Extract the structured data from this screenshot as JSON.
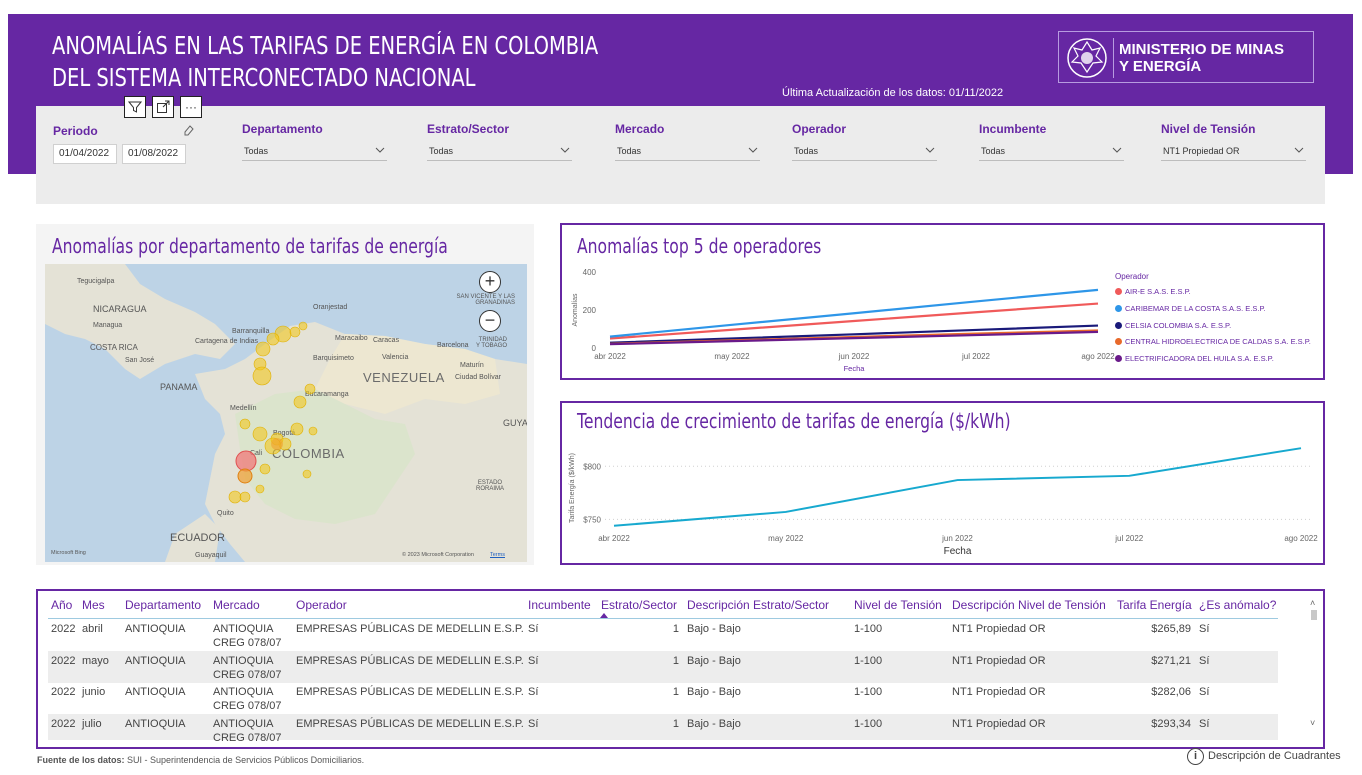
{
  "header": {
    "title_line1": "ANOMALÍAS EN LAS TARIFAS DE ENERGÍA EN COLOMBIA",
    "title_line2": "DEL SISTEMA INTERCONECTADO NACIONAL",
    "last_update": "Última Actualización de los datos: 01/11/2022",
    "logo_line1": "MINISTERIO DE MINAS",
    "logo_line2": "Y ENERGÍA",
    "bg_color": "#6627a3"
  },
  "visual_buttons": {
    "filter": "⛉",
    "focus": "⤢",
    "more": "···"
  },
  "filters": {
    "periodo": {
      "label": "Periodo",
      "start": "01/04/2022",
      "end": "01/08/2022"
    },
    "departamento": {
      "label": "Departamento",
      "value": "Todas"
    },
    "estrato": {
      "label": "Estrato/Sector",
      "value": "Todas"
    },
    "mercado": {
      "label": "Mercado",
      "value": "Todas"
    },
    "operador": {
      "label": "Operador",
      "value": "Todas"
    },
    "incumbente": {
      "label": "Incumbente",
      "value": "Todas"
    },
    "nivel": {
      "label": "Nivel de Tensión",
      "value": "NT1 Propiedad OR"
    }
  },
  "map_panel": {
    "title": "Anomalías por departamento de tarifas de energía",
    "countries": [
      "VENEZUELA",
      "COLOMBIA",
      "PANAMA",
      "NICARAGUA",
      "COSTA RICA",
      "ECUADOR",
      "GUYA"
    ],
    "cities": [
      "Tegucigalpa",
      "Managua",
      "San José",
      "Barranquilla",
      "Cartagena de Indias",
      "Maracaibo",
      "Caracas",
      "Barquisimeto",
      "Valencia",
      "Barcelona",
      "Maturín",
      "Ciudad Bolívar",
      "Bucaramanga",
      "Medellín",
      "Bogotá",
      "Cali",
      "Quito",
      "Guayaquil",
      "Oranjestad",
      "SAN VICENTE Y LAS GRANADINAS",
      "TRINIDAD Y TOBAGO",
      "ESTADO RORAIMA"
    ],
    "attribution_left": "Microsoft Bing",
    "attribution_right": "© 2023 Microsoft Corporation",
    "terms": "Terms",
    "zoom_in": "+",
    "zoom_out": "−"
  },
  "operators_panel": {
    "title": "Anomalías top 5 de operadores",
    "legend_title": "Operador"
  },
  "trend_panel": {
    "title": "Tendencia de crecimiento de tarifas de energía ($/kWh)"
  },
  "chart_data": [
    {
      "type": "line",
      "title": "Anomalías top 5 de operadores",
      "xlabel": "Fecha",
      "ylabel": "Anomalías",
      "x": [
        "abr 2022",
        "may 2022",
        "jun 2022",
        "jul 2022",
        "ago 2022"
      ],
      "yticks": [
        "400",
        "200",
        "0"
      ],
      "ylim": [
        0,
        400
      ],
      "grid": false,
      "legend_position": "right",
      "series": [
        {
          "name": "AIR-E S.A.S. E.S.P.",
          "color": "#f05a5a",
          "values": [
            50,
            96,
            142,
            188,
            234
          ]
        },
        {
          "name": "CARIBEMAR DE LA COSTA S.A.S. E.S.P.",
          "color": "#2e96e8",
          "values": [
            60,
            122,
            183,
            245,
            306
          ]
        },
        {
          "name": "CELSIA COLOMBIA S.A. E.S.P.",
          "color": "#1a1a7a",
          "values": [
            28,
            50,
            72,
            95,
            118
          ]
        },
        {
          "name": "CENTRAL HIDROELECTRICA DE CALDAS S.A. E.S.P.",
          "color": "#e8692a",
          "values": [
            22,
            40,
            58,
            76,
            92
          ]
        },
        {
          "name": "ELECTRIFICADORA DEL HUILA S.A. E.S.P.",
          "color": "#6a1a8a",
          "values": [
            20,
            36,
            52,
            68,
            85
          ]
        }
      ]
    },
    {
      "type": "line",
      "title": "Tendencia de crecimiento de tarifas de energía ($/kWh)",
      "xlabel": "Fecha",
      "ylabel": "Tarifa Energía ($/kWh)",
      "x": [
        "abr 2022",
        "may 2022",
        "jun 2022",
        "jul 2022",
        "ago 2022"
      ],
      "yticks": [
        "$800",
        "$750"
      ],
      "ytick_values": [
        800,
        750
      ],
      "ylim": [
        740,
        820
      ],
      "grid": true,
      "series": [
        {
          "name": "",
          "color": "#17a9cf",
          "values": [
            744,
            757,
            787,
            791,
            817
          ]
        }
      ]
    }
  ],
  "table": {
    "headers": [
      "Año",
      "Mes",
      "Departamento",
      "Mercado",
      "Operador",
      "Incumbente",
      "Estrato/Sector",
      "Descripción Estrato/Sector",
      "Nivel de Tensión",
      "Descripción Nivel de Tensión",
      "Tarifa Energía",
      "¿Es anómalo?"
    ],
    "rows": [
      {
        "anio": "2022",
        "mes": "abril",
        "depto": "ANTIOQUIA",
        "mercado1": "ANTIOQUIA",
        "mercado2": "CREG 078/07",
        "operador": "EMPRESAS PÚBLICAS DE MEDELLIN E.S.P.",
        "incumbente": "Sí",
        "estrato": "1",
        "desc_estrato": "Bajo - Bajo",
        "nivel": "1-100",
        "desc_nivel": "NT1 Propiedad OR",
        "tarifa": "$265,89",
        "anomalo": "Sí"
      },
      {
        "anio": "2022",
        "mes": "mayo",
        "depto": "ANTIOQUIA",
        "mercado1": "ANTIOQUIA",
        "mercado2": "CREG 078/07",
        "operador": "EMPRESAS PÚBLICAS DE MEDELLIN E.S.P.",
        "incumbente": "Sí",
        "estrato": "1",
        "desc_estrato": "Bajo - Bajo",
        "nivel": "1-100",
        "desc_nivel": "NT1 Propiedad OR",
        "tarifa": "$271,21",
        "anomalo": "Sí"
      },
      {
        "anio": "2022",
        "mes": "junio",
        "depto": "ANTIOQUIA",
        "mercado1": "ANTIOQUIA",
        "mercado2": "CREG 078/07",
        "operador": "EMPRESAS PÚBLICAS DE MEDELLIN E.S.P.",
        "incumbente": "Sí",
        "estrato": "1",
        "desc_estrato": "Bajo - Bajo",
        "nivel": "1-100",
        "desc_nivel": "NT1 Propiedad OR",
        "tarifa": "$282,06",
        "anomalo": "Sí"
      },
      {
        "anio": "2022",
        "mes": "julio",
        "depto": "ANTIOQUIA",
        "mercado1": "ANTIOQUIA",
        "mercado2": "CREG 078/07",
        "operador": "EMPRESAS PÚBLICAS DE MEDELLIN E.S.P.",
        "incumbente": "Sí",
        "estrato": "1",
        "desc_estrato": "Bajo - Bajo",
        "nivel": "1-100",
        "desc_nivel": "NT1 Propiedad OR",
        "tarifa": "$293,34",
        "anomalo": "Sí"
      }
    ]
  },
  "footer": {
    "source_label": "Fuente de los datos:",
    "source_text": " SUI - Superintendencia de Servicios Públicos Domiciliarios.",
    "desc_label": "Descripción de Cuadrantes",
    "info_icon": "i"
  }
}
